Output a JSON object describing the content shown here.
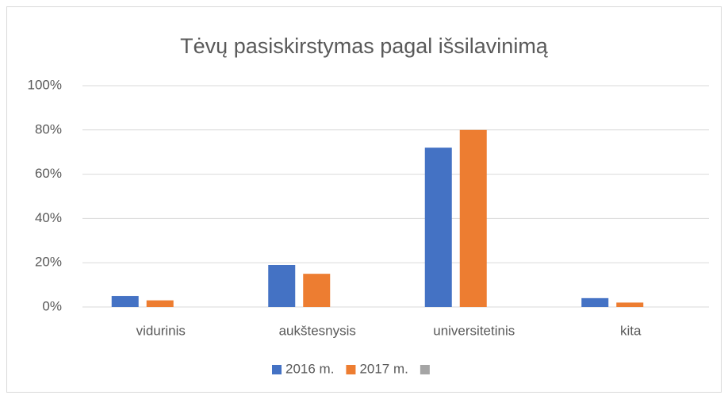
{
  "chart_data": {
    "type": "bar",
    "title": "Tėvų pasiskirstymas pagal išsilavinimą",
    "categories": [
      "vidurinis",
      "aukštesnysis",
      "universitetinis",
      "kita"
    ],
    "series": [
      {
        "name": "2016 m.",
        "color": "#4472c4",
        "values": [
          5,
          19,
          72,
          4
        ]
      },
      {
        "name": "2017 m.",
        "color": "#ed7d31",
        "values": [
          3,
          15,
          80,
          2
        ]
      },
      {
        "color": "#a5a5a5",
        "values": [
          null,
          null,
          null,
          null
        ]
      }
    ],
    "ylim": [
      0,
      100
    ],
    "yticks": [
      {
        "value": 0,
        "label": "0%"
      },
      {
        "value": 20,
        "label": "20%"
      },
      {
        "value": 40,
        "label": "40%"
      },
      {
        "value": 60,
        "label": "60%"
      },
      {
        "value": 80,
        "label": "80%"
      },
      {
        "value": 100,
        "label": "100%"
      }
    ],
    "grid": true,
    "legend": "bottom"
  }
}
